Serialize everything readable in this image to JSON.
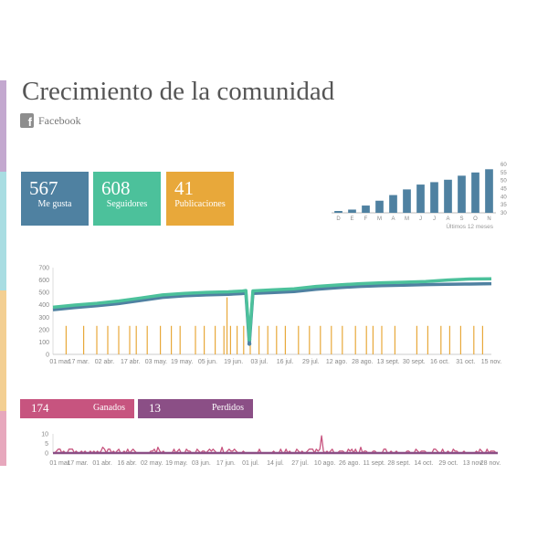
{
  "page": {
    "title": "Crecimiento de la comunidad",
    "network": "Facebook",
    "network_icon": "facebook-icon"
  },
  "stats": [
    {
      "value": "567",
      "label": "Me gusta",
      "color": "#4f81a1"
    },
    {
      "value": "608",
      "label": "Seguidores",
      "color": "#4cc19b"
    },
    {
      "value": "41",
      "label": "Publicaciones",
      "color": "#e8a83a"
    }
  ],
  "sidebar_colors": [
    "#c3a8cf",
    "#a9dde2",
    "#f3cf92",
    "#e7a8bd"
  ],
  "gains": {
    "gained": {
      "value": "174",
      "label": "Ganados",
      "color": "#c7547f"
    },
    "lost": {
      "value": "13",
      "label": "Perdidos",
      "color": "#8b4f86"
    }
  },
  "chart_data": [
    {
      "type": "bar",
      "title": "",
      "categories": [
        "D",
        "E",
        "F",
        "M",
        "A",
        "M",
        "J",
        "J",
        "A",
        "S",
        "O",
        "N"
      ],
      "values": [
        305,
        320,
        345,
        375,
        410,
        445,
        475,
        490,
        505,
        530,
        550,
        570
      ],
      "ylim": [
        300,
        600
      ],
      "yticks": [
        "300",
        "350",
        "400",
        "450",
        "500",
        "550",
        "600"
      ],
      "caption": "Últimos 12 meses",
      "color": "#4f81a1"
    },
    {
      "type": "line",
      "x_ticks": [
        "01 mar.",
        "17 mar.",
        "02 abr.",
        "17 abr.",
        "03 may.",
        "19 may.",
        "05 jun.",
        "19 jun.",
        "03 jul.",
        "16 jul.",
        "29 jul.",
        "12 ago.",
        "28 ago.",
        "13 sept.",
        "30 sept.",
        "16 oct.",
        "31 oct.",
        "15 nov."
      ],
      "ylim": [
        0,
        700
      ],
      "yticks": [
        "0",
        "100",
        "200",
        "300",
        "400",
        "500",
        "600",
        "700"
      ],
      "series": [
        {
          "name": "Seguidores",
          "color": "#4cc19b",
          "points": [
            [
              0,
              380
            ],
            [
              0.05,
              398
            ],
            [
              0.1,
              412
            ],
            [
              0.15,
              430
            ],
            [
              0.2,
              455
            ],
            [
              0.25,
              480
            ],
            [
              0.3,
              492
            ],
            [
              0.35,
              500
            ],
            [
              0.4,
              505
            ],
            [
              0.43,
              510
            ],
            [
              0.44,
              515
            ],
            [
              0.448,
              120
            ],
            [
              0.456,
              512
            ],
            [
              0.5,
              520
            ],
            [
              0.55,
              528
            ],
            [
              0.6,
              548
            ],
            [
              0.65,
              560
            ],
            [
              0.7,
              570
            ],
            [
              0.75,
              578
            ],
            [
              0.8,
              582
            ],
            [
              0.85,
              588
            ],
            [
              0.9,
              600
            ],
            [
              0.95,
              608
            ],
            [
              1,
              610
            ]
          ]
        },
        {
          "name": "Me gusta",
          "color": "#4f81a1",
          "points": [
            [
              0,
              360
            ],
            [
              0.05,
              378
            ],
            [
              0.1,
              392
            ],
            [
              0.15,
              410
            ],
            [
              0.2,
              435
            ],
            [
              0.25,
              460
            ],
            [
              0.3,
              472
            ],
            [
              0.35,
              480
            ],
            [
              0.4,
              485
            ],
            [
              0.43,
              490
            ],
            [
              0.44,
              494
            ],
            [
              0.448,
              85
            ],
            [
              0.456,
              492
            ],
            [
              0.5,
              498
            ],
            [
              0.55,
              506
            ],
            [
              0.6,
              525
            ],
            [
              0.65,
              538
            ],
            [
              0.7,
              548
            ],
            [
              0.75,
              555
            ],
            [
              0.8,
              558
            ],
            [
              0.85,
              563
            ],
            [
              0.9,
              566
            ],
            [
              0.95,
              567
            ],
            [
              1,
              570
            ]
          ]
        }
      ],
      "posts": {
        "color": "#e8a83a",
        "value": 230,
        "x": [
          0.03,
          0.07,
          0.1,
          0.125,
          0.15,
          0.175,
          0.19,
          0.215,
          0.245,
          0.27,
          0.29,
          0.325,
          0.345,
          0.37,
          0.39,
          0.405,
          0.42,
          0.435,
          0.45,
          0.47,
          0.49,
          0.51,
          0.53,
          0.56,
          0.585,
          0.61,
          0.635,
          0.66,
          0.69,
          0.715,
          0.73,
          0.75,
          0.78,
          0.83,
          0.855,
          0.885,
          0.905,
          0.93,
          0.96,
          0.98
        ],
        "spike_x": 0.397,
        "spike_value": 460
      }
    },
    {
      "type": "line",
      "x_ticks": [
        "01 mar.",
        "17 mar.",
        "01 abr.",
        "16 abr.",
        "02 may.",
        "19 may.",
        "03 jun.",
        "17 jun.",
        "01 jul.",
        "14 jul.",
        "27 jul.",
        "10 ago.",
        "26 ago.",
        "11 sept.",
        "28 sept.",
        "14 oct.",
        "29 oct.",
        "13 nov.",
        "28 nov."
      ],
      "ylim": [
        0,
        10
      ],
      "yticks": [
        "0",
        "5",
        "10"
      ],
      "series": [
        {
          "name": "Ganados",
          "color": "#c7547f"
        },
        {
          "name": "Perdidos",
          "color": "#8b4f86"
        }
      ],
      "spike_x": 0.605,
      "spike_value": 9
    }
  ]
}
